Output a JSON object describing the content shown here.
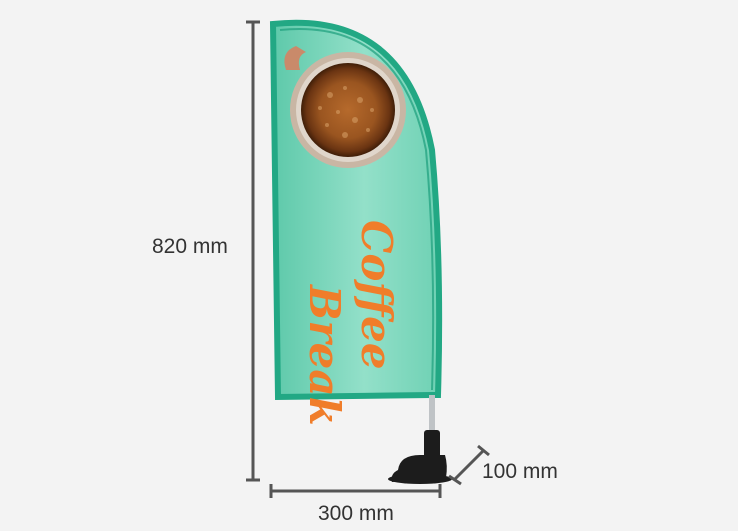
{
  "dimensions": {
    "height_label": "820 mm",
    "width_label": "300 mm",
    "depth_label": "100 mm"
  },
  "flag": {
    "text_line1": "Coffee",
    "text_line2": "Break"
  },
  "colors": {
    "background": "#f3f3f3",
    "flag_main": "#6fd1b4",
    "flag_light": "#9ee6d2",
    "flag_border": "#22a884",
    "text_orange": "#f07d2a",
    "dimension_line": "#555555",
    "base": "#1c1c1c"
  }
}
